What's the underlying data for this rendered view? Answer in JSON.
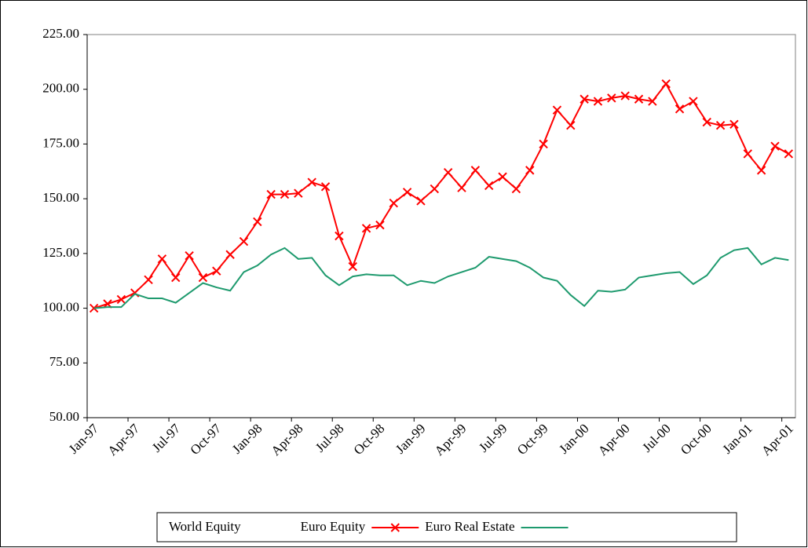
{
  "chart_data": {
    "type": "line",
    "categories": [
      "Jan-97",
      null,
      null,
      "Apr-97",
      null,
      null,
      "Jul-97",
      null,
      null,
      "Oct-97",
      null,
      null,
      "Jan-98",
      null,
      null,
      "Apr-98",
      null,
      null,
      "Jul-98",
      null,
      null,
      "Oct-98",
      null,
      null,
      "Jan-99",
      null,
      null,
      "Apr-99",
      null,
      null,
      "Jul-99",
      null,
      null,
      "Oct-99",
      null,
      null,
      "Jan-00",
      null,
      null,
      "Apr-00",
      null,
      null,
      "Jul-00",
      null,
      null,
      "Oct-00",
      null,
      null,
      "Jan-01",
      null,
      null,
      "Apr-01"
    ],
    "series": [
      {
        "name": "World Equity",
        "color": "#ffffff",
        "marker": "none",
        "values": [
          null,
          null,
          null,
          null,
          null,
          null,
          null,
          null,
          null,
          null,
          null,
          null,
          null,
          null,
          null,
          null,
          null,
          null,
          null,
          null,
          null,
          null,
          null,
          null,
          null,
          null,
          null,
          null,
          null,
          null,
          null,
          null,
          null,
          null,
          null,
          null,
          null,
          null,
          null,
          null,
          null,
          null,
          null,
          null,
          null,
          null,
          null,
          null,
          null,
          null,
          null,
          null
        ]
      },
      {
        "name": "Euro Equity",
        "color": "#ff0000",
        "marker": "x",
        "values": [
          100,
          102,
          104,
          107,
          113,
          122.5,
          114,
          124,
          114,
          117,
          124.5,
          130.5,
          139.5,
          152,
          152,
          152.5,
          157.5,
          155.5,
          133,
          119,
          136.5,
          138,
          148,
          153,
          149,
          154.5,
          162,
          155,
          163,
          156,
          160,
          154.5,
          163,
          175,
          190.5,
          183.5,
          195.5,
          194.5,
          196,
          197,
          195.5,
          194.5,
          202.5,
          191,
          194.5,
          185,
          183.5,
          184,
          170.5,
          163,
          174,
          170.5
        ]
      },
      {
        "name": "Euro Real Estate",
        "color": "#1e9a6e",
        "marker": "none",
        "values": [
          100,
          100.5,
          100.5,
          106.5,
          104.5,
          104.5,
          102.5,
          107,
          111.5,
          109.5,
          108,
          116.5,
          119.5,
          124.5,
          127.5,
          122.5,
          123,
          115,
          110.5,
          114.5,
          115.5,
          115,
          115,
          110.5,
          112.5,
          111.5,
          114.5,
          116.5,
          118.5,
          123.5,
          122.5,
          121.5,
          118.5,
          114,
          112.5,
          106,
          101,
          108,
          107.5,
          108.5,
          114,
          115,
          116,
          116.5,
          111,
          115,
          123,
          126.5,
          127.5,
          120,
          123,
          122
        ]
      }
    ],
    "ylim": [
      50,
      225
    ],
    "yticks": [
      {
        "value": 50,
        "label": "50.00"
      },
      {
        "value": 75,
        "label": "75.00"
      },
      {
        "value": 100,
        "label": "100.00"
      },
      {
        "value": 125,
        "label": "125.00"
      },
      {
        "value": 150,
        "label": "150.00"
      },
      {
        "value": 175,
        "label": "175.00"
      },
      {
        "value": 200,
        "label": "200.00"
      },
      {
        "value": 225,
        "label": "225.00"
      }
    ],
    "grid": false,
    "legend": "bottom"
  }
}
